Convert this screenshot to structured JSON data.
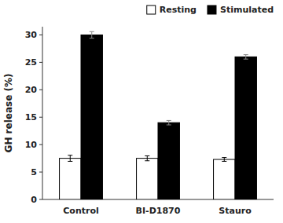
{
  "chart_data": {
    "type": "bar",
    "categories": [
      "Control",
      "BI-D1870",
      "Stauro"
    ],
    "series": [
      {
        "name": "Resting",
        "color": "white",
        "values": [
          7.5,
          7.5,
          7.3
        ],
        "errors": [
          0.55,
          0.45,
          0.35
        ]
      },
      {
        "name": "Stimulated",
        "color": "black",
        "values": [
          30.0,
          14.0,
          26.0
        ],
        "errors": [
          0.6,
          0.4,
          0.4
        ]
      }
    ],
    "ylabel": "GH release (%)",
    "ylim": [
      0,
      31.5
    ],
    "yticks": [
      0,
      5,
      10,
      15,
      20,
      25,
      30
    ],
    "grid": false,
    "legend": "upper right"
  }
}
